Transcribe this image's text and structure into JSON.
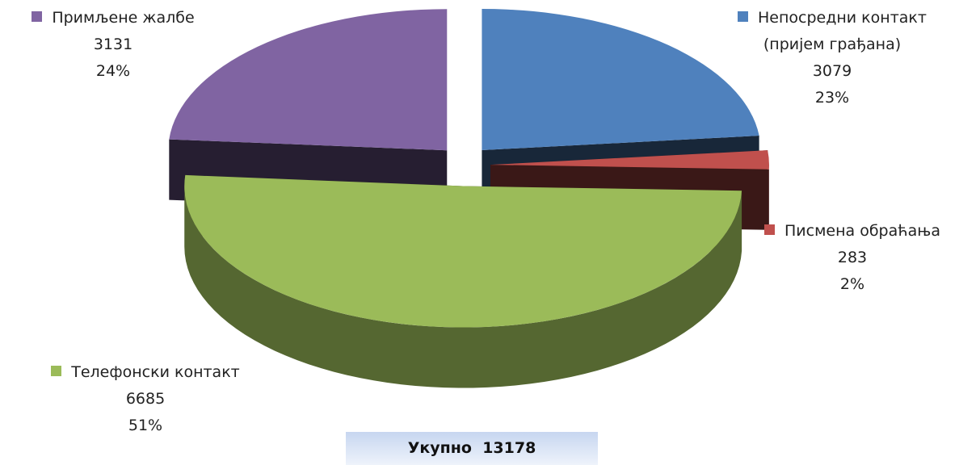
{
  "chart_data": {
    "type": "pie",
    "categories": [
      "Непосредни контакт (пријем грађана)",
      "Писмена обраћања",
      "Телефонски контакт",
      "Примљене жалбе"
    ],
    "values": [
      3079,
      283,
      6685,
      3131
    ],
    "percent_labels": [
      "23%",
      "2%",
      "51%",
      "24%"
    ],
    "colors": [
      "#4f81bd",
      "#c0504d",
      "#9bbb59",
      "#8064a2"
    ],
    "total_label": "Укупно",
    "total": 13178
  }
}
